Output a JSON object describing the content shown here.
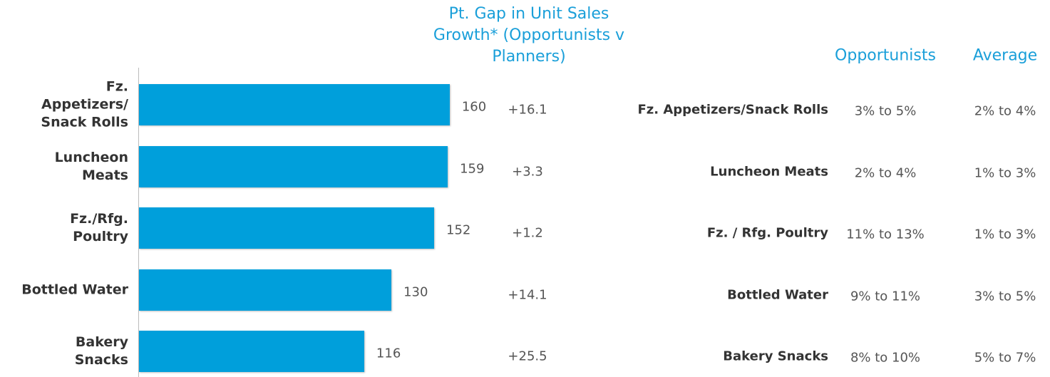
{
  "chart_data": {
    "type": "bar",
    "orientation": "horizontal",
    "categories": [
      "Fz.\nAppetizers/\nSnack Rolls",
      "Luncheon\nMeats",
      "Fz./Rfg.\nPoultry",
      "Bottled Water",
      "Bakery\nSnacks"
    ],
    "values": [
      160,
      159,
      152,
      130,
      116
    ],
    "color": "#009fdb",
    "xlim": [
      0,
      160
    ]
  },
  "gap_column": {
    "header": "Pt. Gap in Unit Sales\nGrowth* (Opportunists v\nPlanners)",
    "values": [
      "+16.1",
      "+3.3",
      "+1.2",
      "+14.1",
      "+25.5"
    ]
  },
  "table": {
    "headers": [
      "Opportunists",
      "Average"
    ],
    "rows": [
      [
        "Fz. Appetizers/Snack Rolls",
        "3% to 5%",
        "2% to 4%"
      ],
      [
        "Luncheon Meats",
        "2% to 4%",
        "1% to 3%"
      ],
      [
        "Fz. / Rfg. Poultry",
        "11% to 13%",
        "1% to 3%"
      ],
      [
        "Bottled Water",
        "9% to 11%",
        "3% to 5%"
      ],
      [
        "Bakery Snacks",
        "8% to 10%",
        "5% to 7%"
      ]
    ]
  }
}
